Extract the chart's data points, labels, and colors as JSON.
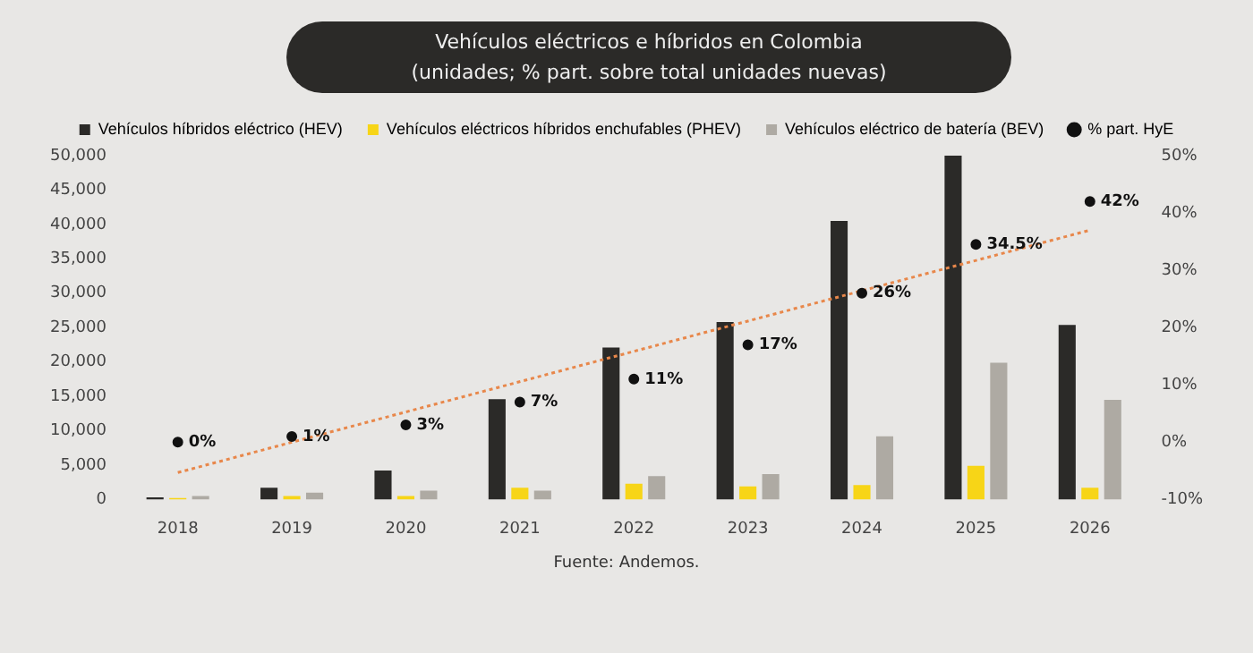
{
  "chart_data": {
    "type": "bar",
    "title": "Vehículos eléctricos e híbridos en Colombia",
    "subtitle": "(unidades; % part. sobre total unidades nuevas)",
    "categories": [
      "2018",
      "2019",
      "2020",
      "2021",
      "2022",
      "2023",
      "2024",
      "2025",
      "2026"
    ],
    "series": [
      {
        "name": "Vehículos híbridos eléctrico (HEV)",
        "color": "#2b2a28",
        "values": [
          300,
          1700,
          4200,
          14600,
          22100,
          25800,
          40500,
          50000,
          25400
        ]
      },
      {
        "name": "Vehículos eléctricos híbridos enchufables (PHEV)",
        "color": "#f7d517",
        "values": [
          200,
          500,
          500,
          1700,
          2300,
          1900,
          2100,
          4900,
          1700
        ]
      },
      {
        "name": "Vehículos eléctrico de batería (BEV)",
        "color": "#aeaaa3",
        "values": [
          500,
          1000,
          1300,
          1300,
          3400,
          3700,
          9200,
          19900,
          14500
        ]
      },
      {
        "name": "% part. HyE",
        "type": "scatter",
        "axis": "y2",
        "color": "#111111",
        "values": [
          0,
          1,
          3,
          7,
          11,
          17,
          26,
          34.5,
          42
        ],
        "value_labels": [
          "0%",
          "1%",
          "3%",
          "7%",
          "11%",
          "17%",
          "26%",
          "34.5%",
          "42%"
        ]
      },
      {
        "type": "line",
        "axis": "y2",
        "color": "#e8874a",
        "line_style": "dotted",
        "marker": "none",
        "values": [
          -5.3,
          null,
          null,
          null,
          null,
          null,
          null,
          null,
          37
        ]
      }
    ],
    "ylim": [
      0,
      50000
    ],
    "yticks": [
      {
        "value": 0,
        "label": "0"
      },
      {
        "value": 5000,
        "label": "5,000"
      },
      {
        "value": 10000,
        "label": "10,000"
      },
      {
        "value": 15000,
        "label": "15,000"
      },
      {
        "value": 20000,
        "label": "20,000"
      },
      {
        "value": 25000,
        "label": "25,000"
      },
      {
        "value": 30000,
        "label": "30,000"
      },
      {
        "value": 35000,
        "label": "35,000"
      },
      {
        "value": 40000,
        "label": "40,000"
      },
      {
        "value": 45000,
        "label": "45,000"
      },
      {
        "value": 50000,
        "label": "50,000"
      }
    ],
    "y2lim": [
      -10,
      50
    ],
    "y2ticks": [
      {
        "value": -10,
        "label": "-10%"
      },
      {
        "value": 0,
        "label": "0%"
      },
      {
        "value": 10,
        "label": "10%"
      },
      {
        "value": 20,
        "label": "20%"
      },
      {
        "value": 30,
        "label": "30%"
      },
      {
        "value": 40,
        "label": "40%"
      },
      {
        "value": 50,
        "label": "50%"
      }
    ],
    "legend": "top",
    "grid": false,
    "annotations": [
      "Fuente: Andemos."
    ]
  }
}
